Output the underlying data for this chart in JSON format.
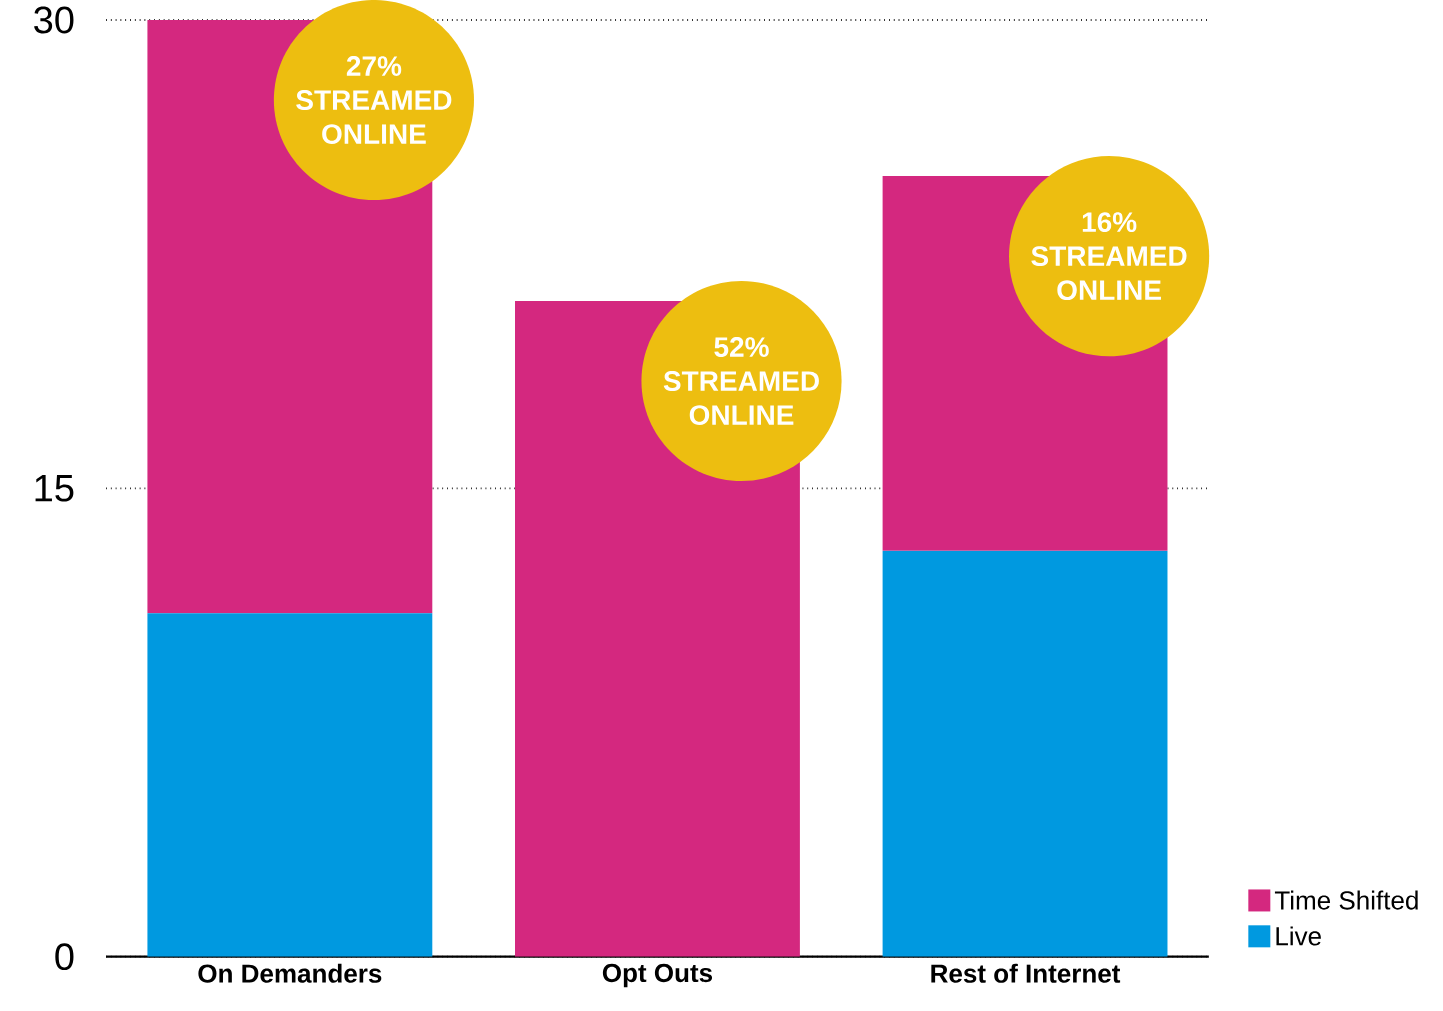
{
  "chart_data": {
    "type": "bar",
    "stacked": true,
    "categories": [
      "On Demanders",
      "Opt Outs",
      "Rest of Internet"
    ],
    "series": [
      {
        "name": "Live",
        "color": "#0099e0",
        "values": [
          11,
          0,
          13
        ]
      },
      {
        "name": "Time Shifted",
        "color": "#d4287f",
        "values": [
          19,
          21,
          12
        ]
      }
    ],
    "ylim": [
      0,
      30
    ],
    "yticks": [
      0,
      15,
      30
    ],
    "grid": "y",
    "legend": "bottom right",
    "annotations": [
      "27% STREAMED ONLINE",
      "52% STREAMED ONLINE",
      "16% STREAMED ONLINE"
    ]
  }
}
